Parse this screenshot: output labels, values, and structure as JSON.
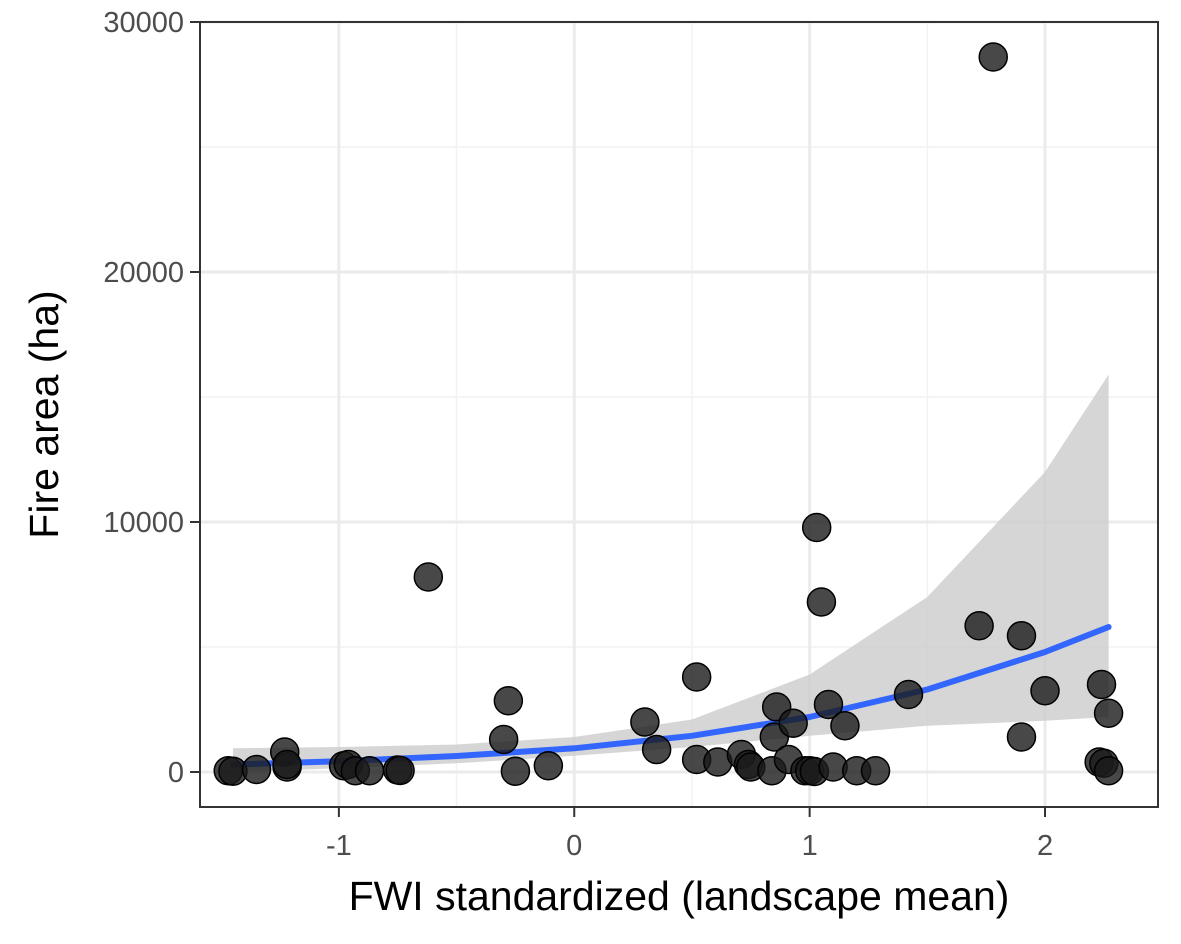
{
  "chart_data": {
    "type": "scatter",
    "title": "",
    "xlabel": "FWI standardized (landscape mean)",
    "ylabel": "Fire area (ha)",
    "xlim": [
      -1.59,
      2.48
    ],
    "ylim": [
      -1400,
      30000
    ],
    "x_ticks": [
      -1,
      0,
      1,
      2
    ],
    "x_tick_labels": [
      "-1",
      "0",
      "1",
      "2"
    ],
    "y_ticks": [
      0,
      10000,
      20000,
      30000
    ],
    "y_tick_labels": [
      "0",
      "10000",
      "20000",
      "30000"
    ],
    "grid": true,
    "legend": "none",
    "series": [
      {
        "kind": "points",
        "x": [
          -1.47,
          -1.45,
          -1.35,
          -1.23,
          -1.22,
          -1.22,
          -0.98,
          -0.96,
          -0.93,
          -0.87,
          -0.75,
          -0.74,
          -0.62,
          -0.3,
          -0.28,
          -0.25,
          -0.11,
          0.3,
          0.35,
          0.52,
          0.52,
          0.61,
          0.71,
          0.74,
          0.75,
          0.84,
          0.85,
          0.86,
          0.91,
          0.93,
          0.98,
          1.0,
          1.02,
          1.03,
          1.05,
          1.08,
          1.1,
          1.15,
          1.2,
          1.28,
          1.42,
          1.72,
          1.78,
          1.9,
          1.9,
          2.0,
          2.23,
          2.24,
          2.25,
          2.27,
          2.27
        ],
        "y": [
          50,
          30,
          100,
          800,
          200,
          300,
          250,
          300,
          50,
          50,
          80,
          60,
          7800,
          1300,
          2850,
          30,
          250,
          2000,
          900,
          3800,
          500,
          400,
          700,
          300,
          200,
          50,
          1400,
          2600,
          500,
          1950,
          50,
          50,
          20,
          9780,
          6800,
          2700,
          200,
          1850,
          50,
          50,
          3100,
          5850,
          28600,
          5450,
          1400,
          3250,
          400,
          3500,
          350,
          2350,
          50
        ],
        "color": "#1a1a1a"
      },
      {
        "kind": "fit",
        "name": "",
        "x": [
          -1.45,
          -1.0,
          -0.5,
          0.0,
          0.5,
          1.0,
          1.5,
          2.0,
          2.27
        ],
        "y": [
          300,
          430,
          640,
          950,
          1450,
          2200,
          3300,
          4800,
          5800
        ],
        "ci_lower": [
          0,
          150,
          350,
          650,
          1000,
          1450,
          1850,
          2050,
          2200
        ],
        "ci_upper": [
          950,
          1000,
          1100,
          1400,
          2100,
          3900,
          7000,
          12000,
          15900
        ],
        "color": "#3366ff",
        "ribbon_color": "#cccccc"
      }
    ]
  }
}
